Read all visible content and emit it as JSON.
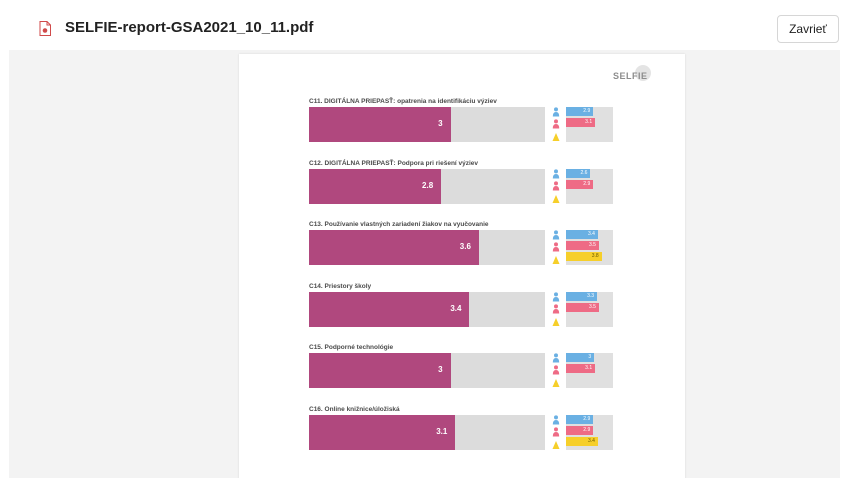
{
  "header": {
    "file_name": "SELFIE-report-GSA2021_10_11.pdf",
    "close_label": "Zavrieť"
  },
  "page": {
    "logo_text": "SELFIE",
    "sections": [
      {
        "title": "C11. DIGITÁLNA PRIEPASŤ: opatrenia na identifikáciu výziev",
        "value": "3",
        "score": 3,
        "groups": [
          {
            "role": "teacher",
            "value": "2.9",
            "score": 2.9
          },
          {
            "role": "leader",
            "value": "3.1",
            "score": 3.1
          }
        ]
      },
      {
        "title": "C12. DIGITÁLNA PRIEPASŤ: Podpora pri riešení výziev",
        "value": "2.8",
        "score": 2.8,
        "groups": [
          {
            "role": "teacher",
            "value": "2.6",
            "score": 2.6
          },
          {
            "role": "leader",
            "value": "2.9",
            "score": 2.9
          }
        ]
      },
      {
        "title": "C13. Používanie vlastných zariadení žiakov na vyučovanie",
        "value": "3.6",
        "score": 3.6,
        "groups": [
          {
            "role": "teacher",
            "value": "3.4",
            "score": 3.4
          },
          {
            "role": "leader",
            "value": "3.5",
            "score": 3.5
          },
          {
            "role": "student",
            "value": "3.8",
            "score": 3.8
          }
        ]
      },
      {
        "title": "C14. Priestory školy",
        "value": "3.4",
        "score": 3.4,
        "groups": [
          {
            "role": "teacher",
            "value": "3.3",
            "score": 3.3
          },
          {
            "role": "leader",
            "value": "3.5",
            "score": 3.5
          }
        ]
      },
      {
        "title": "C15. Podporné technológie",
        "value": "3",
        "score": 3,
        "groups": [
          {
            "role": "teacher",
            "value": "3",
            "score": 3
          },
          {
            "role": "leader",
            "value": "3.1",
            "score": 3.1
          }
        ]
      },
      {
        "title": "C16. Online knižnice/úložiská",
        "value": "3.1",
        "score": 3.1,
        "groups": [
          {
            "role": "teacher",
            "value": "2.9",
            "score": 2.9
          },
          {
            "role": "leader",
            "value": "2.9",
            "score": 2.9
          },
          {
            "role": "student",
            "value": "3.4",
            "score": 3.4
          }
        ]
      }
    ]
  },
  "colors": {
    "main_bar": "#b0487e",
    "teacher": "#6ab0e3",
    "leader": "#ee6b85",
    "student": "#f6cf2a"
  },
  "icons": {
    "file": "pdf-file-icon",
    "teacher": "teacher-icon",
    "leader": "school-leader-icon",
    "student": "student-icon"
  },
  "scale_max": 5
}
